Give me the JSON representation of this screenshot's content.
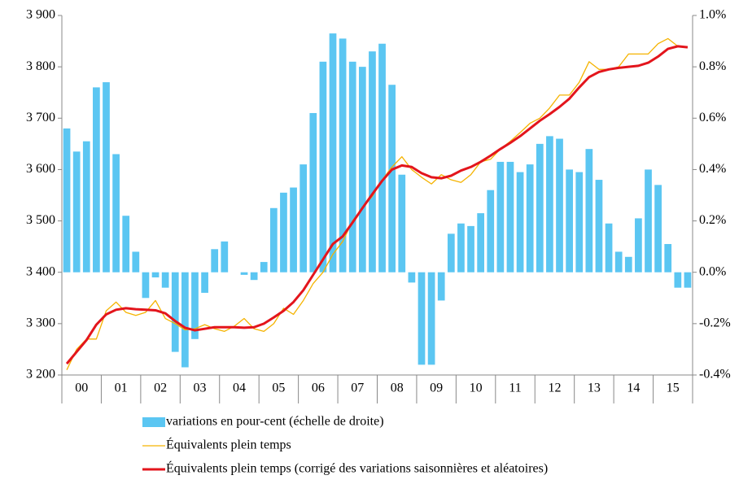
{
  "chart_data": {
    "type": "bar-line",
    "categories": [
      "00",
      null,
      null,
      null,
      "01",
      null,
      null,
      null,
      "02",
      null,
      null,
      null,
      "03",
      null,
      null,
      null,
      "04",
      null,
      null,
      null,
      "05",
      null,
      null,
      null,
      "06",
      null,
      null,
      null,
      "07",
      null,
      null,
      null,
      "08",
      null,
      null,
      null,
      "09",
      null,
      null,
      null,
      "10",
      null,
      null,
      null,
      "11",
      null,
      null,
      null,
      "12",
      null,
      null,
      null,
      "13",
      null,
      null,
      null,
      "14",
      null,
      null,
      null,
      "15",
      null,
      null,
      null
    ],
    "series": [
      {
        "name": "variations en pour-cent (échelle de droite)",
        "kind": "bar",
        "axis": "y2",
        "color": "#5bc6f2",
        "values": [
          0.56,
          0.47,
          0.51,
          0.72,
          0.74,
          0.46,
          0.22,
          0.08,
          -0.1,
          -0.02,
          -0.06,
          -0.31,
          -0.37,
          -0.26,
          -0.08,
          0.09,
          0.12,
          0,
          -0.01,
          -0.03,
          0.04,
          0.25,
          0.31,
          0.33,
          0.42,
          0.62,
          0.82,
          0.93,
          0.91,
          0.82,
          0.8,
          0.86,
          0.89,
          0.73,
          0.38,
          -0.04,
          -0.36,
          -0.36,
          -0.11,
          0.15,
          0.19,
          0.18,
          0.23,
          0.32,
          0.43,
          0.43,
          0.39,
          0.42,
          0.5,
          0.53,
          0.52,
          0.4,
          0.39,
          0.48,
          0.36,
          0.19,
          0.08,
          0.06,
          0.21,
          0.4,
          0.34,
          0.11,
          -0.06,
          -0.06
        ]
      },
      {
        "name": "Équivalents plein temps",
        "kind": "line",
        "color": "#f5b300",
        "width": 1.3,
        "values": [
          3210,
          3250,
          3270,
          3270,
          3325,
          3342,
          3322,
          3316,
          3322,
          3345,
          3310,
          3300,
          3288,
          3290,
          3298,
          3290,
          3285,
          3295,
          3310,
          3290,
          3285,
          3300,
          3330,
          3318,
          3345,
          3378,
          3400,
          3435,
          3460,
          3500,
          3525,
          3548,
          3580,
          3605,
          3625,
          3600,
          3585,
          3572,
          3590,
          3580,
          3575,
          3590,
          3615,
          3620,
          3640,
          3655,
          3672,
          3690,
          3700,
          3720,
          3745,
          3745,
          3770,
          3810,
          3795,
          3795,
          3800,
          3825,
          3825,
          3825,
          3845,
          3855,
          3840,
          3838
        ]
      },
      {
        "name": "Équivalents plein temps (corrigé des variations saisonnières et aléatoires)",
        "kind": "line",
        "color": "#e3151c",
        "width": 3,
        "values": [
          3222,
          3245,
          3268,
          3298,
          3318,
          3327,
          3330,
          3328,
          3327,
          3326,
          3320,
          3305,
          3292,
          3287,
          3290,
          3293,
          3293,
          3293,
          3292,
          3293,
          3300,
          3312,
          3325,
          3342,
          3365,
          3395,
          3425,
          3455,
          3470,
          3497,
          3525,
          3552,
          3578,
          3600,
          3608,
          3605,
          3593,
          3585,
          3583,
          3588,
          3598,
          3605,
          3615,
          3627,
          3640,
          3652,
          3665,
          3680,
          3695,
          3708,
          3722,
          3738,
          3760,
          3780,
          3790,
          3795,
          3798,
          3800,
          3802,
          3808,
          3820,
          3835,
          3840,
          3838
        ]
      }
    ],
    "ylim": [
      3200,
      3900
    ],
    "yticks": [
      {
        "value": 3200,
        "label": "3 200"
      },
      {
        "value": 3300,
        "label": "3 300"
      },
      {
        "value": 3400,
        "label": "3 400"
      },
      {
        "value": 3500,
        "label": "3 500"
      },
      {
        "value": 3600,
        "label": "3 600"
      },
      {
        "value": 3700,
        "label": "3 700"
      },
      {
        "value": 3800,
        "label": "3 800"
      },
      {
        "value": 3900,
        "label": "3 900"
      }
    ],
    "y2lim": [
      -0.4,
      1.0
    ],
    "y2ticks": [
      {
        "value": -0.4,
        "label": "-0.4%"
      },
      {
        "value": -0.2,
        "label": "-0.2%"
      },
      {
        "value": 0,
        "label": "0.0%"
      },
      {
        "value": 0.2,
        "label": "0.2%"
      },
      {
        "value": 0.4,
        "label": "0.4%"
      },
      {
        "value": 0.6,
        "label": "0.6%"
      },
      {
        "value": 0.8,
        "label": "0.8%"
      },
      {
        "value": 1.0,
        "label": "1.0%"
      }
    ],
    "legend": "bottom"
  }
}
